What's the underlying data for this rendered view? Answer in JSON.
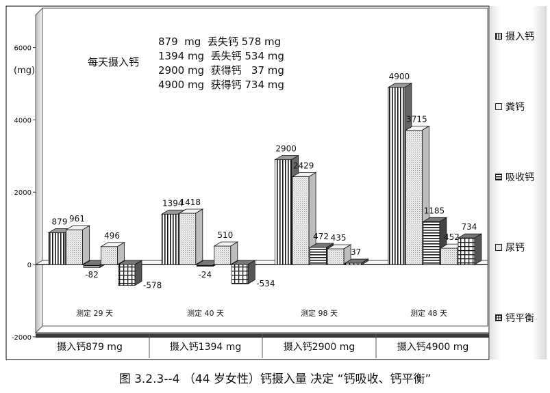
{
  "chart_data": {
    "type": "bar",
    "ylabel": "(mg)",
    "yticks": [
      6000,
      4000,
      2000,
      0,
      -2000
    ],
    "ylim": [
      -2000,
      7000
    ],
    "categories": [
      "摄入钙879 mg",
      "摄入钙1394 mg",
      "摄入钙2900 mg",
      "摄入钙4900 mg"
    ],
    "group_notes": [
      "测定 29 天",
      "测定 40 天",
      "测定 98 天",
      "测定 48 天"
    ],
    "series": [
      {
        "name": "摄入钙",
        "values": [
          879,
          1394,
          2900,
          4900
        ],
        "pattern": "vlines",
        "value_labels": [
          "879",
          "1394",
          "2900",
          "4900"
        ]
      },
      {
        "name": "粪钙",
        "values": [
          961,
          1418,
          2429,
          3715
        ],
        "pattern": "dots",
        "value_labels": [
          "961",
          "1418",
          "2429",
          "3715"
        ]
      },
      {
        "name": "吸收钙",
        "values": [
          -82,
          -24,
          472,
          1185
        ],
        "pattern": "hlines",
        "value_labels": [
          "-82",
          "-24",
          "472",
          "1185"
        ]
      },
      {
        "name": "尿钙",
        "values": [
          496,
          510,
          435,
          452
        ],
        "pattern": "dots",
        "value_labels": [
          "496",
          "510",
          "435",
          "452"
        ]
      },
      {
        "name": "钙平衡",
        "values": [
          -578,
          -534,
          37,
          734
        ],
        "pattern": "grid",
        "value_labels": [
          "-578",
          "-534",
          "37",
          "734"
        ]
      }
    ],
    "annotation": {
      "label": "每天摄入钙",
      "lines": [
        "879  mg  丢失钙 578 mg",
        "1394 mg  丢失钙 534 mg",
        "2900 mg  获得钙   37 mg",
        "4900 mg  获得钙 734 mg"
      ]
    },
    "legend_position": "right",
    "grid": false
  },
  "caption": "图  3.2.3--4  （44 岁女性）钙摄入量 决定 “钙吸收、钙平衡”"
}
